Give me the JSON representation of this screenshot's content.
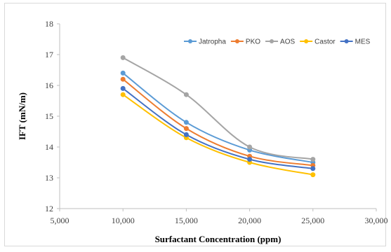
{
  "chart_data": {
    "type": "line",
    "title": "",
    "xlabel": "Surfactant Concentration (ppm)",
    "ylabel": "IFT (mN/m)",
    "xlim": [
      5000,
      30000
    ],
    "ylim": [
      12,
      18
    ],
    "x_ticks": [
      5000,
      10000,
      15000,
      20000,
      25000,
      30000
    ],
    "x_tick_labels": [
      "5,000",
      "10,000",
      "15,000",
      "20,000",
      "25,000",
      "30,000"
    ],
    "y_ticks": [
      12,
      13,
      14,
      15,
      16,
      17,
      18
    ],
    "y_tick_labels": [
      "12",
      "13",
      "14",
      "15",
      "16",
      "17",
      "18"
    ],
    "grid": false,
    "legend_position": "top-right",
    "x": [
      10000,
      15000,
      20000,
      25000
    ],
    "series": [
      {
        "name": "Jatropha",
        "color": "#5b9bd5",
        "values": [
          16.4,
          14.8,
          13.9,
          13.5
        ]
      },
      {
        "name": "PKO",
        "color": "#ed7d31",
        "values": [
          16.2,
          14.6,
          13.7,
          13.4
        ]
      },
      {
        "name": "AOS",
        "color": "#a5a5a5",
        "values": [
          16.9,
          15.7,
          14.0,
          13.6
        ]
      },
      {
        "name": "Castor",
        "color": "#ffc000",
        "values": [
          15.7,
          14.3,
          13.5,
          13.1
        ]
      },
      {
        "name": "MES",
        "color": "#4472c4",
        "values": [
          15.9,
          14.4,
          13.6,
          13.3
        ]
      }
    ]
  }
}
